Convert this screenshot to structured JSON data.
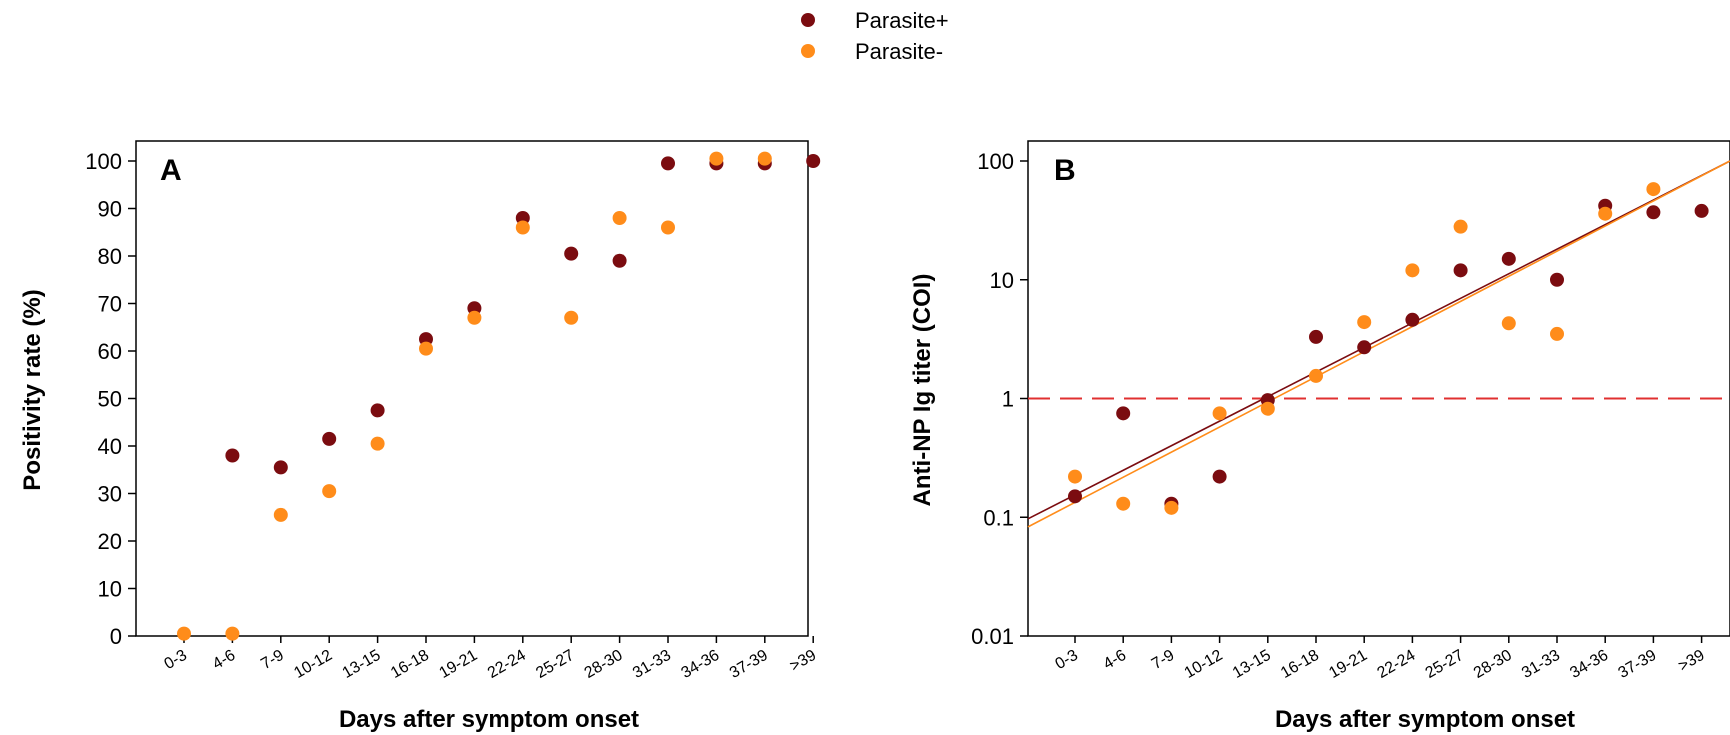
{
  "legend": {
    "position": "top-center",
    "items": [
      {
        "label": "Parasite+",
        "color": "#7b0c10"
      },
      {
        "label": "Parasite-",
        "color": "#ff8c1a"
      }
    ]
  },
  "chart_data": [
    {
      "type": "scatter",
      "panel_label": "A",
      "xlabel": "Days after symptom onset",
      "ylabel": "Positivity rate (%)",
      "categories": [
        "0-3",
        "4-6",
        "7-9",
        "10-12",
        "13-15",
        "16-18",
        "19-21",
        "22-24",
        "25-27",
        "28-30",
        "31-33",
        "34-36",
        "37-39",
        ">39"
      ],
      "ylim": [
        0,
        100
      ],
      "yticks": [
        0,
        10,
        20,
        30,
        40,
        50,
        60,
        70,
        80,
        90,
        100
      ],
      "ytick_labels": [
        "0",
        "10",
        "20",
        "30",
        "40",
        "50",
        "60",
        "70",
        "80",
        "90",
        "100"
      ],
      "yscale": "linear",
      "grid": false,
      "series": [
        {
          "name": "Parasite+",
          "color": "#7b0c10",
          "values": [
            null,
            38,
            35.5,
            41.5,
            47.5,
            62.5,
            69,
            88,
            80.5,
            79,
            99.5,
            99.5,
            99.5,
            100
          ]
        },
        {
          "name": "Parasite-",
          "color": "#ff8c1a",
          "values": [
            0.5,
            0.5,
            25.5,
            30.5,
            40.5,
            60.5,
            67,
            86,
            67,
            88,
            86,
            100.5,
            100.5,
            null
          ]
        }
      ]
    },
    {
      "type": "scatter",
      "panel_label": "B",
      "xlabel": "Days after symptom onset",
      "ylabel": "Anti-NP Ig titer (COI)",
      "categories": [
        "0-3",
        "4-6",
        "7-9",
        "10-12",
        "13-15",
        "16-18",
        "19-21",
        "22-24",
        "25-27",
        "28-30",
        "31-33",
        "34-36",
        "37-39",
        ">39"
      ],
      "ylim": [
        0.01,
        100
      ],
      "yticks": [
        0.01,
        0.1,
        1,
        10,
        100
      ],
      "ytick_labels": [
        "0.01",
        "0.1",
        "1",
        "10",
        "100"
      ],
      "yscale": "log",
      "grid": false,
      "cutoff": {
        "value": 1,
        "color": "#e03030",
        "style": "dashed"
      },
      "series": [
        {
          "name": "Parasite+",
          "color": "#7b0c10",
          "values": [
            0.15,
            0.75,
            0.13,
            0.22,
            0.97,
            3.3,
            2.7,
            4.6,
            12,
            15,
            10,
            42,
            37,
            38
          ],
          "trend": {
            "start": 0.097,
            "end": 100
          }
        },
        {
          "name": "Parasite-",
          "color": "#ff8c1a",
          "values": [
            0.22,
            0.13,
            0.12,
            0.75,
            0.82,
            1.55,
            4.4,
            12,
            28,
            4.3,
            3.5,
            36,
            58,
            null
          ],
          "trend": {
            "start": 0.083,
            "end": 100
          }
        }
      ]
    }
  ]
}
